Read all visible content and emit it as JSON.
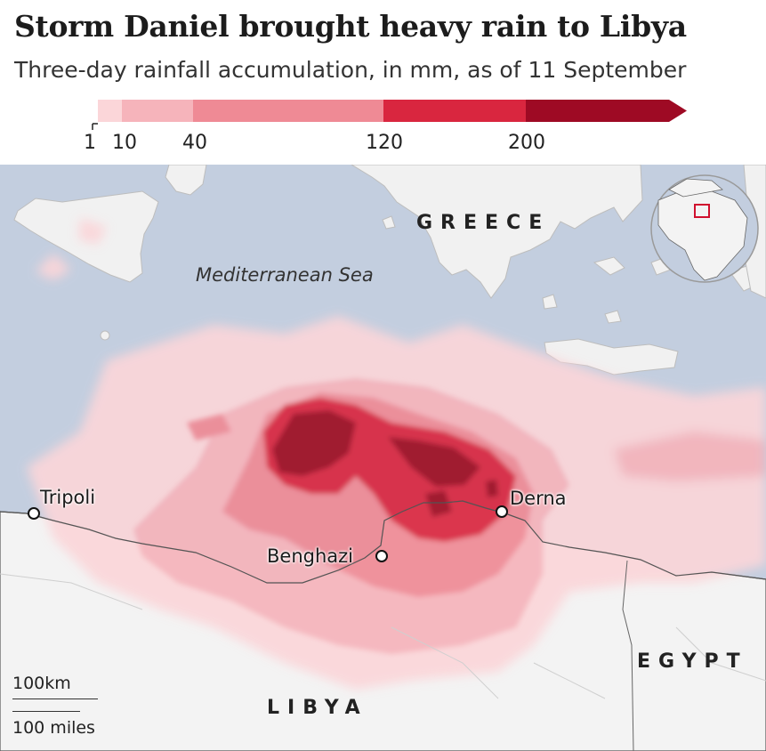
{
  "title": "Storm Daniel brought heavy rain to Libya",
  "subtitle": "Three-day rainfall accumulation, in mm, as of 11 September",
  "legend": {
    "ticks": [
      "1",
      "10",
      "40",
      "120",
      "200"
    ],
    "colors": [
      "#fbd6d9",
      "#f6b4bb",
      "#ef8a95",
      "#d9263f",
      "#9e0a24"
    ]
  },
  "labels": {
    "sea": "Mediterranean Sea",
    "greece": "GREECE",
    "libya": "LIBYA",
    "egypt": "EGYPT"
  },
  "cities": {
    "tripoli": "Tripoli",
    "benghazi": "Benghazi",
    "derna": "Derna"
  },
  "scale": {
    "km": "100km",
    "miles": "100 miles"
  },
  "colors": {
    "sea": "#c3cedf",
    "land": "#f3f3f3",
    "border": "#555555",
    "inset_marker": "#d0102e"
  },
  "icons": [
    "locator-globe-icon",
    "city-marker-icon"
  ]
}
